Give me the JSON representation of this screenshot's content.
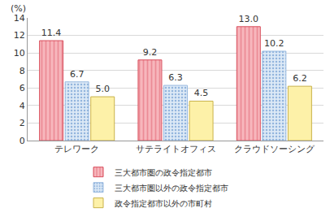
{
  "chart_data": {
    "type": "bar",
    "y_label": "(%)",
    "categories": [
      "テレワーク",
      "サテライトオフィス",
      "クラウドソーシング"
    ],
    "series": [
      {
        "name": "三大都市圏の政令指定都市",
        "color": "#f7b6bc",
        "values": [
          11.4,
          9.2,
          13.0
        ],
        "value_labels": [
          "11.4",
          "9.2",
          "13.0"
        ]
      },
      {
        "name": "三大都市圏以外の政令指定都市",
        "color": "#dce9f6",
        "values": [
          6.7,
          6.3,
          10.2
        ],
        "value_labels": [
          "6.7",
          "6.3",
          "10.2"
        ]
      },
      {
        "name": "政令指定都市以外の市町村",
        "color": "#fdf1a8",
        "values": [
          5.0,
          4.5,
          6.2
        ],
        "value_labels": [
          "5.0",
          "4.5",
          "6.2"
        ]
      }
    ],
    "ylim": [
      0,
      14
    ],
    "yticks": [
      0,
      2,
      4,
      6,
      8,
      10,
      12,
      14
    ],
    "grid": true,
    "data_labels": true,
    "legend": "bottom"
  }
}
